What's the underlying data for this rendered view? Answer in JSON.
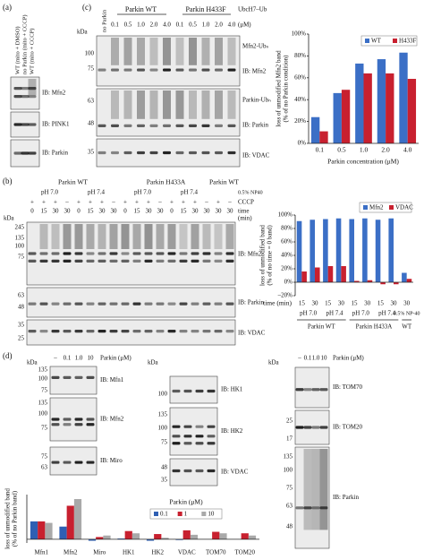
{
  "panel_a": {
    "label": "(a)",
    "lanes": [
      "WT (mito + DMSO)",
      "no Parkin (mito + CCCP)",
      "WT (mito + CCCP)"
    ],
    "blots": [
      "IB: Mfn2",
      "IB: PINK1",
      "IB: Parkin"
    ]
  },
  "panel_c": {
    "label": "(c)",
    "groups": [
      "Parkin WT",
      "Parkin H433F"
    ],
    "reagent": "UbcH7–Ub",
    "control": "no Parkin",
    "lanes": [
      "0.1",
      "0.5",
      "1.0",
      "2.0",
      "4.0"
    ],
    "unit": "(μM)",
    "kda": "kDa",
    "markers": [
      "100",
      "75",
      "63",
      "48",
      "35"
    ],
    "blots": [
      "Mfn2-Ubₙ",
      "IB: Mfn2",
      "Parkin-Ubₙ",
      "IB: Parkin",
      "IB: VDAC"
    ]
  },
  "panel_b": {
    "label": "(b)",
    "groups": [
      "Parkin WT",
      "Parkin H433A",
      "Parkin WT"
    ],
    "conditions": [
      "pH 7.0",
      "pH 7.4",
      "pH 7.0",
      "pH 7.4",
      "0.5% NP40"
    ],
    "cccp_label": "CCCP",
    "cccp": [
      "+",
      "+",
      "+",
      "–",
      "+",
      "+",
      "+",
      "–",
      "+",
      "+",
      "+",
      "–",
      "+",
      "+",
      "+",
      "–",
      "+",
      "–"
    ],
    "time_label": "time",
    "time_unit": "(min)",
    "times": [
      "0",
      "15",
      "30",
      "30",
      "0",
      "15",
      "30",
      "30",
      "0",
      "15",
      "30",
      "30",
      "0",
      "15",
      "30",
      "30",
      "30",
      "30"
    ],
    "kda": "kDa",
    "markers": [
      "245",
      "135",
      "100",
      "75",
      "63",
      "48",
      "35",
      "25"
    ],
    "blots": [
      "IB: Mfn2",
      "IB: Parkin",
      "IB: VDAC"
    ]
  },
  "panel_d": {
    "label": "(d)",
    "lanes": [
      "–",
      "0.1",
      "1.0",
      "10"
    ],
    "unit": "Parkin (μM)",
    "kda": "kDa",
    "columns": [
      {
        "blots": [
          {
            "label": "IB: Mfn1",
            "markers": [
              "135",
              "100",
              "75"
            ]
          },
          {
            "label": "IB: Mfn2",
            "markers": [
              "135",
              "100",
              "75"
            ]
          },
          {
            "label": "IB: Miro",
            "markers": [
              "75",
              "63"
            ]
          }
        ]
      },
      {
        "blots": [
          {
            "label": "IB: HK1",
            "markers": [
              "100"
            ]
          },
          {
            "label": "IB: HK2",
            "markers": [
              "135",
              "100",
              "75"
            ]
          },
          {
            "label": "IB: VDAC",
            "markers": [
              "48",
              "35"
            ]
          }
        ]
      },
      {
        "blots": [
          {
            "label": "IB: TOM70"
          },
          {
            "label": "IB: TOM20",
            "markers": [
              "25",
              "17"
            ]
          },
          {
            "label": "IB: Parkin",
            "markers": [
              "135",
              "100",
              "75",
              "63",
              "48"
            ]
          }
        ]
      }
    ]
  },
  "chart_data": [
    {
      "type": "bar",
      "ylabel": [
        "loss of unmodified Mfn2 band",
        "(% of no Parkin condition)"
      ],
      "xlabel": "Parkin concentration (μM)",
      "categories": [
        "0.1",
        "0.5",
        "1.0",
        "2.0",
        "4.0"
      ],
      "series": [
        {
          "name": "WT",
          "color": "#3b6fc6",
          "values": [
            24,
            46,
            73,
            77,
            83
          ]
        },
        {
          "name": "H433F",
          "color": "#c8202f",
          "values": [
            11,
            49,
            64,
            64,
            59
          ]
        }
      ],
      "ylim": [
        0,
        100
      ],
      "yticks": [
        {
          "value": 0,
          "label": "0%"
        },
        {
          "value": 20,
          "label": "20%"
        },
        {
          "value": 40,
          "label": "40%"
        },
        {
          "value": 60,
          "label": "60%"
        },
        {
          "value": 80,
          "label": "80%"
        },
        {
          "value": 100,
          "label": "100%"
        }
      ],
      "legend": "top-right"
    },
    {
      "type": "bar",
      "ylabel": [
        "loss of unmodified band",
        "(% of no time = 0 band)"
      ],
      "xlabel": "time (min)",
      "categories": [
        "15",
        "30",
        "15",
        "30",
        "15",
        "30",
        "15",
        "30",
        "30"
      ],
      "conditions": [
        "pH 7.0",
        "pH 7.4",
        "pH 7.0",
        "pH 7.4",
        "0.5% NP-40"
      ],
      "groups": [
        "Parkin WT",
        "Parkin H433A",
        "WT"
      ],
      "series": [
        {
          "name": "Mfn2",
          "color": "#3b6fc6",
          "values": [
            91,
            93,
            94,
            95,
            94,
            95,
            93,
            95,
            14
          ]
        },
        {
          "name": "VDAC",
          "color": "#c8202f",
          "values": [
            16,
            22,
            24,
            24,
            2,
            3,
            -3,
            -3,
            5
          ]
        }
      ],
      "ylim": [
        -20,
        100
      ],
      "yticks": [
        {
          "value": -20,
          "label": "–20%"
        },
        {
          "value": 0,
          "label": "0%"
        },
        {
          "value": 20,
          "label": "20%"
        },
        {
          "value": 40,
          "label": "40%"
        },
        {
          "value": 60,
          "label": "60%"
        },
        {
          "value": 80,
          "label": "80%"
        },
        {
          "value": 100,
          "label": "100%"
        }
      ],
      "legend": "top-right"
    },
    {
      "type": "bar",
      "ylabel": [
        "loss of unmodified band",
        "(% of no Parkin band)"
      ],
      "legend_title": "Parkin (μM)",
      "categories": [
        "Mfn1",
        "Mfn2",
        "Miro",
        "HK1",
        "HK2",
        "VDAC",
        "TOM70",
        "TOM20"
      ],
      "series": [
        {
          "name": "0.1",
          "color": "#2f5fb3",
          "values": [
            24,
            17,
            -2,
            1,
            -2,
            -1,
            0,
            0
          ]
        },
        {
          "name": "1",
          "color": "#c8202f",
          "values": [
            24,
            45,
            3,
            11,
            7,
            12,
            10,
            8
          ]
        },
        {
          "name": "10",
          "color": "#a9a9a9",
          "values": [
            22,
            54,
            5,
            8,
            2,
            6,
            8,
            5
          ]
        }
      ],
      "ylim": [
        -5,
        60
      ],
      "legend": "top-center"
    }
  ]
}
